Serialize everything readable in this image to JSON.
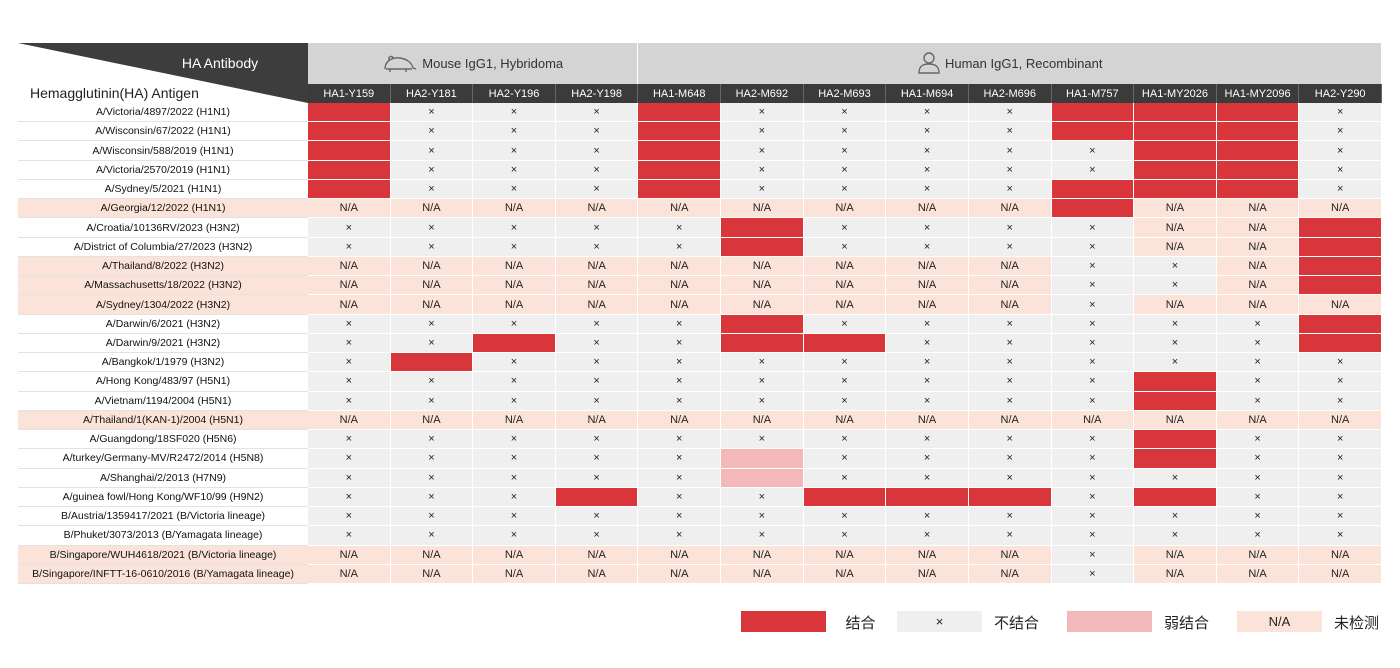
{
  "header": {
    "corner_top": "HA Antibody",
    "corner_bottom": "Hemagglutinin(HA) Antigen",
    "groups": [
      {
        "label": "Mouse IgG1, Hybridoma",
        "span": 4
      },
      {
        "label": "Human IgG1, Recombinant",
        "span": 9
      }
    ],
    "columns": [
      "HA1-Y159",
      "HA2-Y181",
      "HA2-Y196",
      "HA2-Y198",
      "HA1-M648",
      "HA2-M692",
      "HA2-M693",
      "HA1-M694",
      "HA2-M696",
      "HA1-M757",
      "HA1-MY2026",
      "HA1-MY2096",
      "HA2-Y290"
    ]
  },
  "legend": [
    {
      "label": "结合",
      "color": "#d9363b"
    },
    {
      "symbol": "×",
      "label": "不结合",
      "color": "#efefef"
    },
    {
      "label": "弱结合",
      "color": "#f2b8ba"
    },
    {
      "symbol": "N/A",
      "label": "未检测",
      "color": "#fce3d9"
    }
  ],
  "table": {
    "rows": [
      {
        "antigen": "A/Victoria/4897/2022 (H1N1)",
        "cells": [
          0,
          1,
          1,
          1,
          0,
          1,
          1,
          1,
          1,
          0,
          0,
          0,
          1
        ]
      },
      {
        "antigen": "A/Wisconsin/67/2022 (H1N1)",
        "cells": [
          0,
          1,
          1,
          1,
          0,
          1,
          1,
          1,
          1,
          0,
          0,
          0,
          1
        ]
      },
      {
        "antigen": "A/Wisconsin/588/2019 (H1N1)",
        "cells": [
          0,
          1,
          1,
          1,
          0,
          1,
          1,
          1,
          1,
          1,
          0,
          0,
          1
        ]
      },
      {
        "antigen": "A/Victoria/2570/2019 (H1N1)",
        "cells": [
          0,
          1,
          1,
          1,
          0,
          1,
          1,
          1,
          1,
          1,
          0,
          0,
          1
        ]
      },
      {
        "antigen": "A/Sydney/5/2021 (H1N1)",
        "cells": [
          0,
          1,
          1,
          1,
          0,
          1,
          1,
          1,
          1,
          0,
          0,
          0,
          1
        ]
      },
      {
        "antigen": "A/Georgia/12/2022 (H1N1)",
        "cells": [
          3,
          3,
          3,
          3,
          3,
          3,
          3,
          3,
          3,
          0,
          3,
          3,
          3
        ]
      },
      {
        "antigen": "A/Croatia/10136RV/2023 (H3N2)",
        "cells": [
          1,
          1,
          1,
          1,
          1,
          0,
          1,
          1,
          1,
          1,
          3,
          3,
          0
        ]
      },
      {
        "antigen": "A/District of Columbia/27/2023 (H3N2)",
        "cells": [
          1,
          1,
          1,
          1,
          1,
          0,
          1,
          1,
          1,
          1,
          3,
          3,
          0
        ]
      },
      {
        "antigen": "A/Thailand/8/2022 (H3N2)",
        "cells": [
          3,
          3,
          3,
          3,
          3,
          3,
          3,
          3,
          3,
          1,
          1,
          3,
          0
        ]
      },
      {
        "antigen": "A/Massachusetts/18/2022 (H3N2)",
        "cells": [
          3,
          3,
          3,
          3,
          3,
          3,
          3,
          3,
          3,
          1,
          1,
          3,
          0
        ]
      },
      {
        "antigen": "A/Sydney/1304/2022 (H3N2)",
        "cells": [
          3,
          3,
          3,
          3,
          3,
          3,
          3,
          3,
          3,
          1,
          3,
          3,
          3
        ]
      },
      {
        "antigen": "A/Darwin/6/2021 (H3N2)",
        "cells": [
          1,
          1,
          1,
          1,
          1,
          0,
          1,
          1,
          1,
          1,
          1,
          1,
          0
        ]
      },
      {
        "antigen": "A/Darwin/9/2021 (H3N2)",
        "cells": [
          1,
          1,
          0,
          1,
          1,
          0,
          0,
          1,
          1,
          1,
          1,
          1,
          0
        ]
      },
      {
        "antigen": "A/Bangkok/1/1979 (H3N2)",
        "cells": [
          1,
          0,
          1,
          1,
          1,
          1,
          1,
          1,
          1,
          1,
          1,
          1,
          1
        ]
      },
      {
        "antigen": "A/Hong Kong/483/97 (H5N1)",
        "cells": [
          1,
          1,
          1,
          1,
          1,
          1,
          1,
          1,
          1,
          1,
          0,
          1,
          1
        ]
      },
      {
        "antigen": "A/Vietnam/1194/2004 (H5N1)",
        "cells": [
          1,
          1,
          1,
          1,
          1,
          1,
          1,
          1,
          1,
          1,
          0,
          1,
          1
        ]
      },
      {
        "antigen": "A/Thailand/1(KAN-1)/2004 (H5N1)",
        "cells": [
          3,
          3,
          3,
          3,
          3,
          3,
          3,
          3,
          3,
          3,
          3,
          3,
          3
        ]
      },
      {
        "antigen": "A/Guangdong/18SF020 (H5N6)",
        "cells": [
          1,
          1,
          1,
          1,
          1,
          1,
          1,
          1,
          1,
          1,
          0,
          1,
          1
        ]
      },
      {
        "antigen": "A/turkey/Germany-MV/R2472/2014 (H5N8)",
        "cells": [
          1,
          1,
          1,
          1,
          1,
          2,
          1,
          1,
          1,
          1,
          0,
          1,
          1
        ]
      },
      {
        "antigen": "A/Shanghai/2/2013 (H7N9)",
        "cells": [
          1,
          1,
          1,
          1,
          1,
          2,
          1,
          1,
          1,
          1,
          1,
          1,
          1
        ]
      },
      {
        "antigen": "A/guinea fowl/Hong Kong/WF10/99 (H9N2)",
        "cells": [
          1,
          1,
          1,
          0,
          1,
          1,
          0,
          0,
          0,
          1,
          0,
          1,
          1
        ]
      },
      {
        "antigen": "B/Austria/1359417/2021 (B/Victoria lineage)",
        "cells": [
          1,
          1,
          1,
          1,
          1,
          1,
          1,
          1,
          1,
          1,
          1,
          1,
          1
        ]
      },
      {
        "antigen": "B/Phuket/3073/2013 (B/Yamagata lineage)",
        "cells": [
          1,
          1,
          1,
          1,
          1,
          1,
          1,
          1,
          1,
          1,
          1,
          1,
          1
        ]
      },
      {
        "antigen": "B/Singapore/WUH4618/2021 (B/Victoria lineage)",
        "cells": [
          3,
          3,
          3,
          3,
          3,
          3,
          3,
          3,
          3,
          1,
          3,
          3,
          3
        ]
      },
      {
        "antigen": "B/Singapore/INFTT-16-0610/2016 (B/Yamagata lineage)",
        "cells": [
          3,
          3,
          3,
          3,
          3,
          3,
          3,
          3,
          3,
          1,
          3,
          3,
          3
        ]
      }
    ]
  }
}
